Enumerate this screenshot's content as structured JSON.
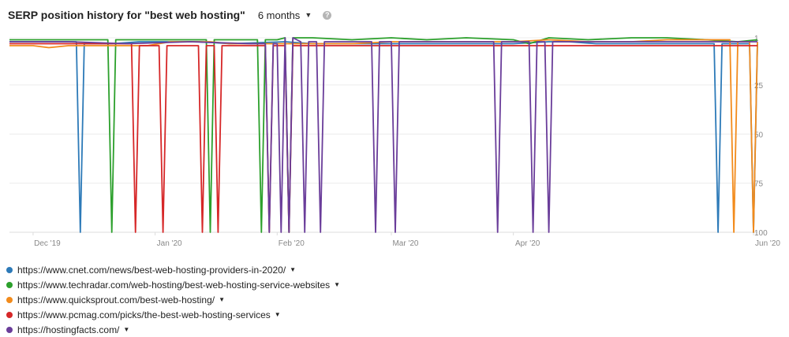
{
  "header": {
    "title": "SERP position history for \"best web hosting\"",
    "period": "6 months",
    "help_icon": "question-mark-icon"
  },
  "chart_data": {
    "type": "line",
    "title": "SERP position history for \"best web hosting\"",
    "xlabel": "",
    "ylabel": "",
    "y_inverted": true,
    "ylim": [
      1,
      100
    ],
    "yticks": [
      1,
      25,
      50,
      75,
      100
    ],
    "xlim": [
      "2019-11-25",
      "2020-06-02"
    ],
    "xticks": [
      {
        "label": "Dec '19",
        "date": "2019-12-01"
      },
      {
        "label": "Jan '20",
        "date": "2020-01-01"
      },
      {
        "label": "Feb '20",
        "date": "2020-02-01"
      },
      {
        "label": "Mar '20",
        "date": "2020-03-01"
      },
      {
        "label": "Apr '20",
        "date": "2020-04-01"
      },
      {
        "label": "Jun '20",
        "date": "2020-06-01"
      }
    ],
    "grid": true,
    "legend_placement": "bottom-left",
    "series": [
      {
        "name": "https://www.cnet.com/news/best-web-hosting-providers-in-2020/",
        "color": "#2d7ab8",
        "points": [
          [
            "2019-11-25",
            3
          ],
          [
            "2019-12-12",
            3
          ],
          [
            "2019-12-13",
            100
          ],
          [
            "2019-12-14",
            4
          ],
          [
            "2019-12-21",
            4
          ],
          [
            "2019-12-28",
            3
          ],
          [
            "2020-01-08",
            3
          ],
          [
            "2020-01-12",
            3
          ],
          [
            "2020-01-20",
            4
          ],
          [
            "2020-02-03",
            3
          ],
          [
            "2020-02-10",
            4
          ],
          [
            "2020-02-20",
            4
          ],
          [
            "2020-03-01",
            4
          ],
          [
            "2020-03-10",
            4
          ],
          [
            "2020-03-20",
            4
          ],
          [
            "2020-04-01",
            4
          ],
          [
            "2020-04-10",
            3
          ],
          [
            "2020-04-15",
            3
          ],
          [
            "2020-04-22",
            4
          ],
          [
            "2020-05-01",
            4
          ],
          [
            "2020-05-12",
            4
          ],
          [
            "2020-05-22",
            4
          ],
          [
            "2020-05-23",
            100
          ],
          [
            "2020-05-24",
            4
          ],
          [
            "2020-05-28",
            4
          ],
          [
            "2020-05-31",
            4
          ],
          [
            "2020-06-01",
            100
          ],
          [
            "2020-06-02",
            4
          ]
        ]
      },
      {
        "name": "https://www.techradar.com/web-hosting/best-web-hosting-service-websites",
        "color": "#2ca02c",
        "points": [
          [
            "2019-11-25",
            2
          ],
          [
            "2019-12-10",
            2
          ],
          [
            "2019-12-20",
            2
          ],
          [
            "2019-12-21",
            100
          ],
          [
            "2019-12-22",
            2
          ],
          [
            "2020-01-05",
            2
          ],
          [
            "2020-01-10",
            2
          ],
          [
            "2020-01-14",
            2
          ],
          [
            "2020-01-15",
            100
          ],
          [
            "2020-01-16",
            2
          ],
          [
            "2020-01-27",
            2
          ],
          [
            "2020-01-28",
            100
          ],
          [
            "2020-01-29",
            2
          ],
          [
            "2020-02-01",
            2
          ],
          [
            "2020-02-03",
            1
          ],
          [
            "2020-02-04",
            100
          ],
          [
            "2020-02-05",
            1
          ],
          [
            "2020-02-10",
            1
          ],
          [
            "2020-02-20",
            2
          ],
          [
            "2020-03-01",
            1
          ],
          [
            "2020-03-10",
            2
          ],
          [
            "2020-03-20",
            1
          ],
          [
            "2020-04-01",
            2
          ],
          [
            "2020-04-05",
            4
          ],
          [
            "2020-04-10",
            1
          ],
          [
            "2020-04-20",
            2
          ],
          [
            "2020-05-01",
            1
          ],
          [
            "2020-05-10",
            1
          ],
          [
            "2020-05-20",
            2
          ],
          [
            "2020-05-28",
            3
          ],
          [
            "2020-06-02",
            2
          ]
        ]
      },
      {
        "name": "https://www.quicksprout.com/best-web-hosting/",
        "color": "#f28b1c",
        "points": [
          [
            "2019-11-25",
            5
          ],
          [
            "2019-12-01",
            5
          ],
          [
            "2019-12-05",
            6
          ],
          [
            "2019-12-10",
            5
          ],
          [
            "2019-12-20",
            5
          ],
          [
            "2019-12-30",
            5
          ],
          [
            "2020-01-05",
            3
          ],
          [
            "2020-01-10",
            3
          ],
          [
            "2020-01-15",
            3
          ],
          [
            "2020-01-20",
            4
          ],
          [
            "2020-01-31",
            4
          ],
          [
            "2020-02-03",
            4
          ],
          [
            "2020-02-10",
            4
          ],
          [
            "2020-02-20",
            4
          ],
          [
            "2020-03-01",
            3
          ],
          [
            "2020-03-10",
            3
          ],
          [
            "2020-03-20",
            3
          ],
          [
            "2020-04-01",
            3
          ],
          [
            "2020-04-10",
            2
          ],
          [
            "2020-04-20",
            3
          ],
          [
            "2020-05-01",
            3
          ],
          [
            "2020-05-10",
            2
          ],
          [
            "2020-05-20",
            2
          ],
          [
            "2020-05-26",
            2
          ],
          [
            "2020-05-27",
            100
          ],
          [
            "2020-05-28",
            3
          ],
          [
            "2020-05-31",
            3
          ],
          [
            "2020-06-01",
            100
          ],
          [
            "2020-06-02",
            3
          ]
        ]
      },
      {
        "name": "https://www.pcmag.com/picks/the-best-web-hosting-services",
        "color": "#d62728",
        "points": [
          [
            "2019-11-25",
            4
          ],
          [
            "2019-12-20",
            4
          ],
          [
            "2019-12-26",
            4
          ],
          [
            "2019-12-27",
            100
          ],
          [
            "2019-12-28",
            5
          ],
          [
            "2020-01-02",
            5
          ],
          [
            "2020-01-03",
            100
          ],
          [
            "2020-01-04",
            5
          ],
          [
            "2020-01-12",
            5
          ],
          [
            "2020-01-13",
            100
          ],
          [
            "2020-01-14",
            5
          ],
          [
            "2020-01-16",
            5
          ],
          [
            "2020-01-17",
            100
          ],
          [
            "2020-01-18",
            5
          ],
          [
            "2020-01-25",
            5
          ],
          [
            "2020-01-29",
            5
          ],
          [
            "2020-01-30",
            100
          ],
          [
            "2020-01-31",
            5
          ],
          [
            "2020-02-03",
            5
          ],
          [
            "2020-02-04",
            100
          ],
          [
            "2020-02-05",
            5
          ],
          [
            "2020-02-20",
            5
          ],
          [
            "2020-03-10",
            5
          ],
          [
            "2020-04-10",
            5
          ],
          [
            "2020-05-10",
            5
          ],
          [
            "2020-05-30",
            5
          ],
          [
            "2020-06-02",
            5
          ]
        ]
      },
      {
        "name": "https://hostingfacts.com/",
        "color": "#6a3d9a",
        "points": [
          [
            "2019-11-25",
            3
          ],
          [
            "2019-12-10",
            3
          ],
          [
            "2019-12-25",
            4
          ],
          [
            "2020-01-10",
            3
          ],
          [
            "2020-01-25",
            4
          ],
          [
            "2020-01-29",
            4
          ],
          [
            "2020-01-30",
            100
          ],
          [
            "2020-01-31",
            4
          ],
          [
            "2020-02-01",
            4
          ],
          [
            "2020-02-02",
            100
          ],
          [
            "2020-02-03",
            1
          ],
          [
            "2020-02-04",
            100
          ],
          [
            "2020-02-05",
            1
          ],
          [
            "2020-02-07",
            3
          ],
          [
            "2020-02-08",
            100
          ],
          [
            "2020-02-09",
            3
          ],
          [
            "2020-02-11",
            3
          ],
          [
            "2020-02-12",
            100
          ],
          [
            "2020-02-13",
            3
          ],
          [
            "2020-02-25",
            3
          ],
          [
            "2020-02-26",
            100
          ],
          [
            "2020-02-27",
            3
          ],
          [
            "2020-03-01",
            3
          ],
          [
            "2020-03-02",
            100
          ],
          [
            "2020-03-03",
            3
          ],
          [
            "2020-03-10",
            3
          ],
          [
            "2020-03-20",
            3
          ],
          [
            "2020-03-27",
            3
          ],
          [
            "2020-03-28",
            100
          ],
          [
            "2020-03-29",
            3
          ],
          [
            "2020-04-05",
            3
          ],
          [
            "2020-04-06",
            100
          ],
          [
            "2020-04-07",
            3
          ],
          [
            "2020-04-09",
            3
          ],
          [
            "2020-04-10",
            100
          ],
          [
            "2020-04-11",
            3
          ],
          [
            "2020-04-20",
            3
          ],
          [
            "2020-05-10",
            3
          ],
          [
            "2020-05-20",
            3
          ],
          [
            "2020-06-02",
            3
          ]
        ]
      }
    ]
  }
}
